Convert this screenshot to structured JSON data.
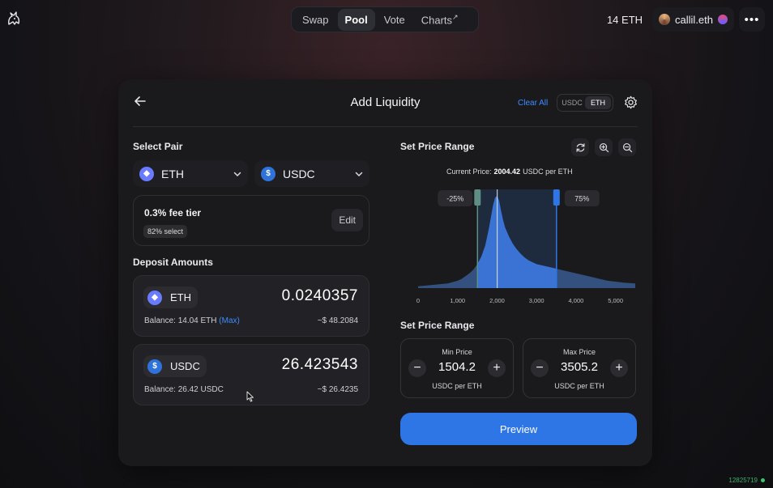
{
  "nav": {
    "items": [
      {
        "label": "Swap",
        "active": false
      },
      {
        "label": "Pool",
        "active": true
      },
      {
        "label": "Vote",
        "active": false
      },
      {
        "label": "Charts",
        "active": false,
        "suffix": "↗"
      }
    ]
  },
  "account": {
    "balance": "14 ETH",
    "ens": "callil.eth"
  },
  "panel": {
    "title": "Add Liquidity",
    "clear_all": "Clear All",
    "currency_toggle": [
      "USDC",
      "ETH"
    ],
    "currency_selected": "ETH"
  },
  "pair": {
    "label": "Select Pair",
    "token_a": "ETH",
    "token_b": "USDC",
    "fee_tier": "0.3% fee tier",
    "fee_select": "82% select",
    "edit": "Edit"
  },
  "deposit": {
    "label": "Deposit Amounts",
    "eth": {
      "token": "ETH",
      "amount": "0.0240357",
      "balance_text": "Balance: 14.04 ETH",
      "max": "(Max)",
      "usd": "~$ 48.2084"
    },
    "usdc": {
      "token": "USDC",
      "amount": "26.423543",
      "balance_text": "Balance: 26.42 USDC",
      "usd": "~$ 26.4235"
    }
  },
  "range": {
    "label": "Set Price Range",
    "current_price_label": "Current Price:",
    "current_price": "2004.42",
    "current_price_unit": "USDC per ETH",
    "lower_pct": "-25%",
    "upper_pct": "75%",
    "section_label": "Set Price Range",
    "min": {
      "label": "Min Price",
      "value": "1504.2",
      "unit": "USDC per ETH"
    },
    "max": {
      "label": "Max Price",
      "value": "3505.2",
      "unit": "USDC per ETH"
    }
  },
  "chart_data": {
    "type": "area",
    "x_ticks": [
      "0",
      "1,000",
      "2,000",
      "3,000",
      "4,000",
      "5,000"
    ],
    "xlim": [
      0,
      5500
    ],
    "current_price": 2004.42,
    "range_min": 1504.2,
    "range_max": 3505.2,
    "x": [
      0,
      250,
      500,
      750,
      1000,
      1100,
      1200,
      1300,
      1400,
      1500,
      1600,
      1700,
      1750,
      1800,
      1850,
      1900,
      1950,
      2000,
      2050,
      2100,
      2150,
      2200,
      2300,
      2400,
      2500,
      2600,
      2700,
      2800,
      2900,
      3000,
      3200,
      3400,
      3600,
      3800,
      4000,
      4200,
      4400,
      4600,
      4800,
      5000,
      5200,
      5500
    ],
    "y": [
      2,
      3,
      4,
      5,
      8,
      10,
      13,
      16,
      20,
      26,
      34,
      46,
      56,
      66,
      78,
      90,
      98,
      100,
      95,
      84,
      74,
      66,
      56,
      48,
      42,
      37,
      33,
      30,
      28,
      26,
      24,
      22,
      20,
      18,
      16,
      14,
      12,
      10,
      8,
      7,
      6,
      5
    ]
  },
  "preview": "Preview",
  "block_number": "12825719",
  "colors": {
    "accent": "#2e76e6",
    "link": "#3d8bff",
    "range_handle": "#2e76e6",
    "min_handle": "#5f8f84"
  }
}
